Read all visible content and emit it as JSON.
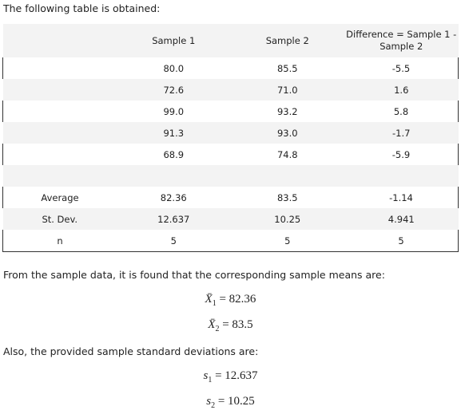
{
  "intro": "The following table is obtained:",
  "table": {
    "header": [
      "Sample 1",
      "Sample 2",
      "Difference = Sample 1 - Sample 2"
    ],
    "rows": [
      [
        "80.0",
        "85.5",
        "-5.5"
      ],
      [
        "72.6",
        "71.0",
        "1.6"
      ],
      [
        "99.0",
        "93.2",
        "5.8"
      ],
      [
        "91.3",
        "93.0",
        "-1.7"
      ],
      [
        "68.9",
        "74.8",
        "-5.9"
      ]
    ],
    "summary": [
      [
        "Average",
        "82.36",
        "83.5",
        "-1.14"
      ],
      [
        "St. Dev.",
        "12.637",
        "10.25",
        "4.941"
      ],
      [
        "n",
        "5",
        "5",
        "5"
      ]
    ]
  },
  "text1": "From the sample data, it is found that the corresponding sample means are:",
  "means": [
    {
      "symbol": "X̄",
      "sub": "1",
      "rhs": "= 82.36"
    },
    {
      "symbol": "X̄",
      "sub": "2",
      "rhs": "= 83.5"
    }
  ],
  "text2": "Also, the provided sample standard deviations are:",
  "sds": [
    {
      "symbol": "s",
      "sub": "1",
      "rhs": "= 12.637"
    },
    {
      "symbol": "s",
      "sub": "2",
      "rhs": "= 10.25"
    }
  ]
}
